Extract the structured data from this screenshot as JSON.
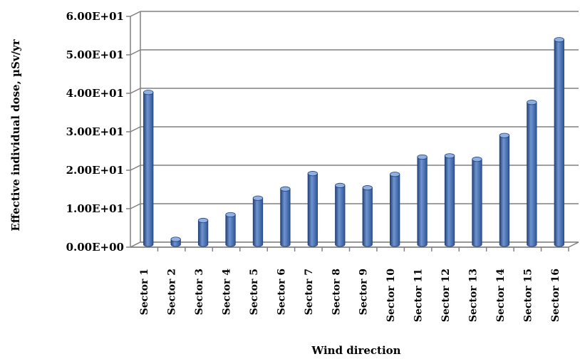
{
  "chart_data": {
    "type": "bar",
    "title": "",
    "xlabel": "Wind direction",
    "ylabel": "Effective individual dose, µSv/yr",
    "ylim": [
      0,
      60
    ],
    "yticks": [
      0,
      10,
      20,
      30,
      40,
      50,
      60
    ],
    "ytick_labels": [
      "0.00E+00",
      "1.00E+01",
      "2.00E+01",
      "3.00E+01",
      "4.00E+01",
      "5.00E+01",
      "6.00E+01"
    ],
    "categories": [
      "Sector 1",
      "Sector 2",
      "Sector 3",
      "Sector 4",
      "Sector 5",
      "Sector 6",
      "Sector 7",
      "Sector 8",
      "Sector 9",
      "Sector 10",
      "Sector 11",
      "Sector 12",
      "Sector 13",
      "Sector 14",
      "Sector 15",
      "Sector 16"
    ],
    "values": [
      39.5,
      1.3,
      6.2,
      7.7,
      12.0,
      14.4,
      18.4,
      15.3,
      14.7,
      18.2,
      22.7,
      23.0,
      22.1,
      28.3,
      36.9,
      53.2
    ],
    "grid": true,
    "bar_color": "#4a73b5",
    "bar_color_dark": "#23427a",
    "bar_color_light": "#8fb0e0"
  }
}
